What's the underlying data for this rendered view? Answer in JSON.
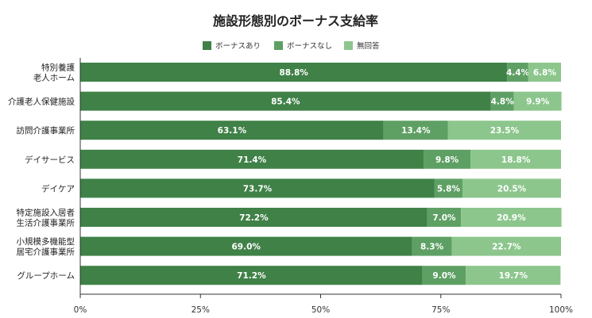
{
  "chart_data": {
    "type": "bar",
    "orientation": "horizontal",
    "stacked": true,
    "title": "施設形態別のボーナス支給率",
    "categories": [
      [
        "特別養護",
        "老人ホーム"
      ],
      [
        "介護老人保健施設"
      ],
      [
        "訪問介護事業所"
      ],
      [
        "デイサービス"
      ],
      [
        "デイケア"
      ],
      [
        "特定施設入居者",
        "生活介護事業所"
      ],
      [
        "小規模多機能型",
        "居宅介護事業所"
      ],
      [
        "グループホーム"
      ]
    ],
    "series": [
      {
        "name": "ボーナスあり",
        "color": "#3f8147",
        "values": [
          88.8,
          85.4,
          63.1,
          71.4,
          73.7,
          72.2,
          69.0,
          71.2
        ],
        "labels": [
          "88.8%",
          "85.4%",
          "63.1%",
          "71.4%",
          "73.7%",
          "72.2%",
          "69.0%",
          "71.2%"
        ]
      },
      {
        "name": "ボーナスなし",
        "color": "#5ea064",
        "values": [
          4.4,
          4.8,
          13.4,
          9.8,
          5.8,
          7.0,
          8.3,
          9.0
        ],
        "labels": [
          "4.4%",
          "4.8%",
          "13.4%",
          "9.8%",
          "5.8%",
          "7.0%",
          "8.3%",
          "9.0%"
        ]
      },
      {
        "name": "無回答",
        "color": "#8cc68c",
        "values": [
          6.8,
          9.9,
          23.5,
          18.8,
          20.5,
          20.9,
          22.7,
          19.7
        ],
        "labels": [
          "6.8%",
          "9.9%",
          "23.5%",
          "18.8%",
          "20.5%",
          "20.9%",
          "22.7%",
          "19.7%"
        ]
      }
    ],
    "xlim": [
      0,
      100
    ],
    "xticks": [
      0,
      25,
      50,
      75,
      100
    ],
    "xtick_labels": [
      "0%",
      "25%",
      "50%",
      "75%",
      "100%"
    ],
    "legend_position": "top",
    "grid": false
  }
}
